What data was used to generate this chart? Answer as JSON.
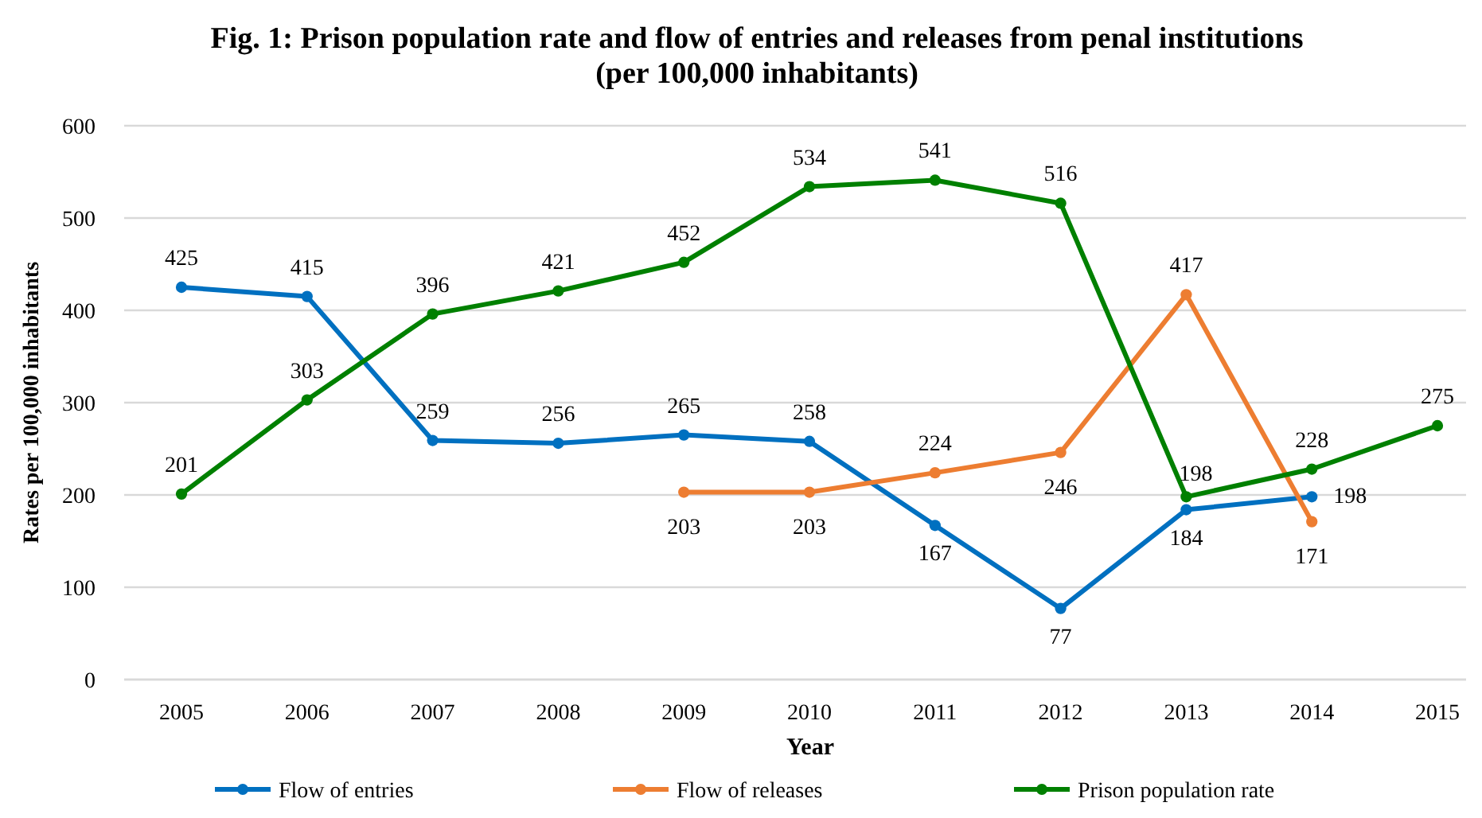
{
  "chart_data": {
    "type": "line",
    "title": "Fig. 1: Prison population rate and flow of entries and releases from penal institutions (per 100,000 inhabitants)",
    "xlabel": "Year",
    "ylabel": "Rates per 100,000 inhabitants",
    "categories": [
      "2005",
      "2006",
      "2007",
      "2008",
      "2009",
      "2010",
      "2011",
      "2012",
      "2013",
      "2014",
      "2015"
    ],
    "series": [
      {
        "name": "Flow of entries",
        "color": "#0070c0",
        "values": [
          425,
          415,
          259,
          256,
          265,
          258,
          167,
          77,
          184,
          198,
          null
        ]
      },
      {
        "name": "Flow of releases",
        "color": "#ed7d31",
        "values": [
          null,
          null,
          null,
          null,
          203,
          203,
          224,
          246,
          417,
          171,
          null
        ]
      },
      {
        "name": "Prison population rate",
        "color": "#008000",
        "values": [
          201,
          303,
          396,
          421,
          452,
          534,
          541,
          516,
          198,
          228,
          275
        ]
      }
    ],
    "ylim": [
      0,
      600
    ],
    "yticks": [
      0,
      100,
      200,
      300,
      400,
      500,
      600
    ],
    "grid": "y",
    "legend": "bottom",
    "marker": "circle",
    "line_style": "solid",
    "data_labels": true
  }
}
